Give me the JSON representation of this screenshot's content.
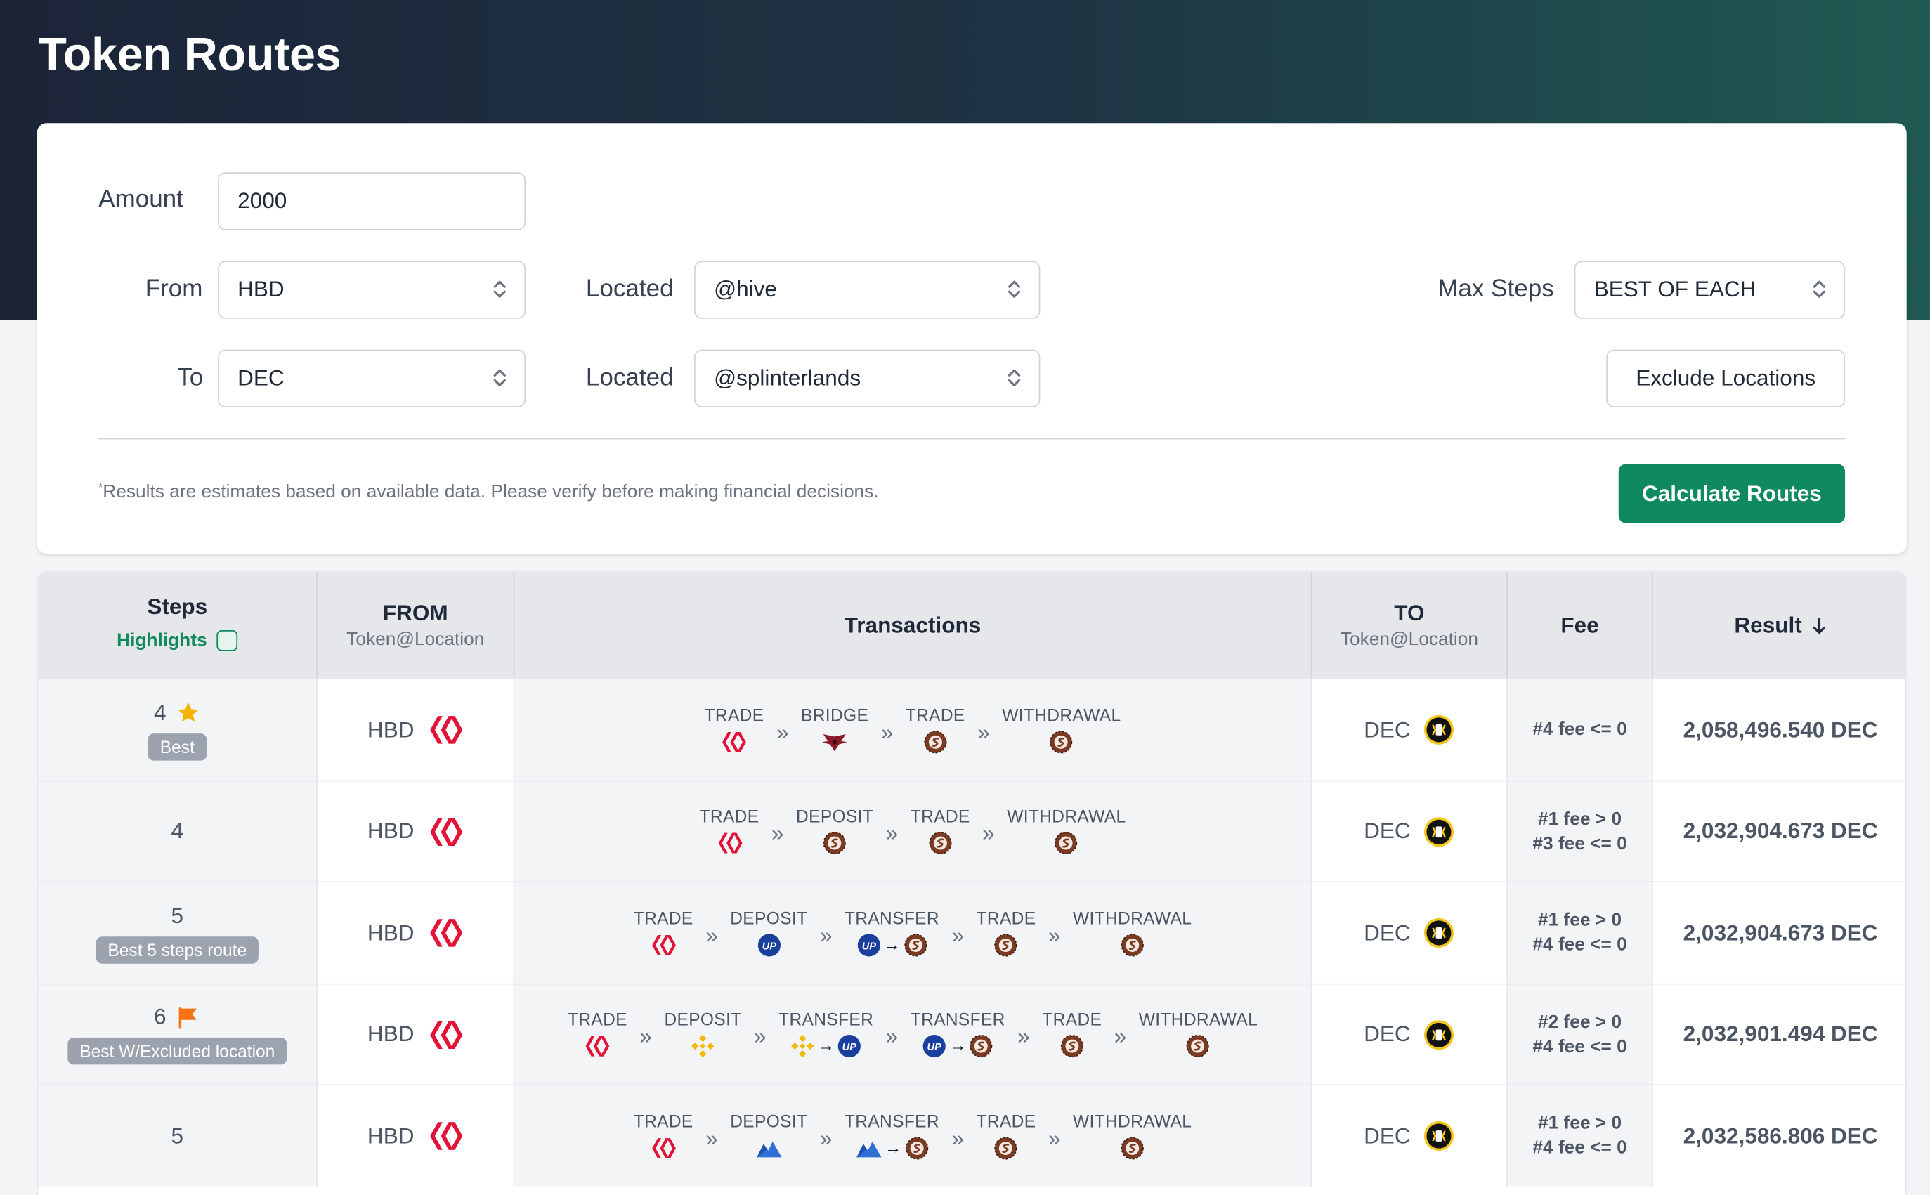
{
  "page": {
    "title": "Token Routes"
  },
  "form": {
    "amount": {
      "label": "Amount",
      "value": "2000"
    },
    "from": {
      "label": "From",
      "value": "HBD"
    },
    "from_located": {
      "label": "Located",
      "value": "@hive"
    },
    "to": {
      "label": "To",
      "value": "DEC"
    },
    "to_located": {
      "label": "Located",
      "value": "@splinterlands"
    },
    "max_steps": {
      "label": "Max Steps",
      "value": "BEST OF EACH"
    },
    "exclude_label": "Exclude Locations",
    "calculate_label": "Calculate Routes",
    "note_mark": "*",
    "note": "Results are estimates based on available data. Please verify before making financial decisions."
  },
  "table": {
    "headers": {
      "steps": "Steps",
      "highlights": "Highlights",
      "from": "FROM",
      "from_sub": "Token@Location",
      "transactions": "Transactions",
      "to": "TO",
      "to_sub": "Token@Location",
      "fee": "Fee",
      "result": "Result",
      "result_sort_icon": "arrow-down-icon"
    },
    "rows": [
      {
        "steps": "4",
        "marker": "star-icon",
        "badge": "Best",
        "from": "HBD",
        "to": "DEC",
        "fee": [
          "#4 fee <= 0"
        ],
        "result": "2,058,496.540 DEC",
        "steps_list": [
          {
            "name": "TRADE",
            "icons": [
              "hive"
            ]
          },
          {
            "name": "BRIDGE",
            "icons": [
              "bridge"
            ]
          },
          {
            "name": "TRADE",
            "icons": [
              "splinter"
            ]
          },
          {
            "name": "WITHDRAWAL",
            "icons": [
              "splinter"
            ]
          }
        ]
      },
      {
        "steps": "4",
        "marker": "",
        "badge": "",
        "from": "HBD",
        "to": "DEC",
        "fee": [
          "#1 fee > 0",
          "#3 fee <= 0"
        ],
        "result": "2,032,904.673 DEC",
        "steps_list": [
          {
            "name": "TRADE",
            "icons": [
              "hive"
            ]
          },
          {
            "name": "DEPOSIT",
            "icons": [
              "splinter"
            ]
          },
          {
            "name": "TRADE",
            "icons": [
              "splinter"
            ]
          },
          {
            "name": "WITHDRAWAL",
            "icons": [
              "splinter"
            ]
          }
        ]
      },
      {
        "steps": "5",
        "marker": "",
        "badge": "Best 5 steps route",
        "from": "HBD",
        "to": "DEC",
        "fee": [
          "#1 fee > 0",
          "#4 fee <= 0"
        ],
        "result": "2,032,904.673 DEC",
        "steps_list": [
          {
            "name": "TRADE",
            "icons": [
              "hive"
            ]
          },
          {
            "name": "DEPOSIT",
            "icons": [
              "up"
            ]
          },
          {
            "name": "TRANSFER",
            "icons": [
              "up",
              "arrow",
              "splinter"
            ]
          },
          {
            "name": "TRADE",
            "icons": [
              "splinter"
            ]
          },
          {
            "name": "WITHDRAWAL",
            "icons": [
              "splinter"
            ]
          }
        ]
      },
      {
        "steps": "6",
        "marker": "flag-icon",
        "badge": "Best W/Excluded location",
        "from": "HBD",
        "to": "DEC",
        "fee": [
          "#2 fee > 0",
          "#4 fee <= 0"
        ],
        "result": "2,032,901.494 DEC",
        "steps_list": [
          {
            "name": "TRADE",
            "icons": [
              "hive"
            ]
          },
          {
            "name": "DEPOSIT",
            "icons": [
              "bnb"
            ]
          },
          {
            "name": "TRANSFER",
            "icons": [
              "bnb",
              "arrow",
              "up"
            ]
          },
          {
            "name": "TRANSFER",
            "icons": [
              "up",
              "arrow",
              "splinter"
            ]
          },
          {
            "name": "TRADE",
            "icons": [
              "splinter"
            ]
          },
          {
            "name": "WITHDRAWAL",
            "icons": [
              "splinter"
            ]
          }
        ]
      },
      {
        "steps": "5",
        "marker": "",
        "badge": "",
        "from": "HBD",
        "to": "DEC",
        "fee": [
          "#1 fee > 0",
          "#4 fee <= 0"
        ],
        "result": "2,032,586.806 DEC",
        "steps_list": [
          {
            "name": "TRADE",
            "icons": [
              "hive"
            ]
          },
          {
            "name": "DEPOSIT",
            "icons": [
              "mountain"
            ]
          },
          {
            "name": "TRANSFER",
            "icons": [
              "mountain",
              "arrow",
              "splinter"
            ]
          },
          {
            "name": "TRADE",
            "icons": [
              "splinter"
            ]
          },
          {
            "name": "WITHDRAWAL",
            "icons": [
              "splinter"
            ]
          }
        ]
      }
    ]
  },
  "colors": {
    "header_bg": "#1c2438",
    "accent": "#0f8a5f",
    "hive": "#e31337",
    "splinter": "#7a3b22",
    "up": "#1a3f9c",
    "bnb": "#f0b90b",
    "star": "#f5b301",
    "flag": "#f97316"
  }
}
